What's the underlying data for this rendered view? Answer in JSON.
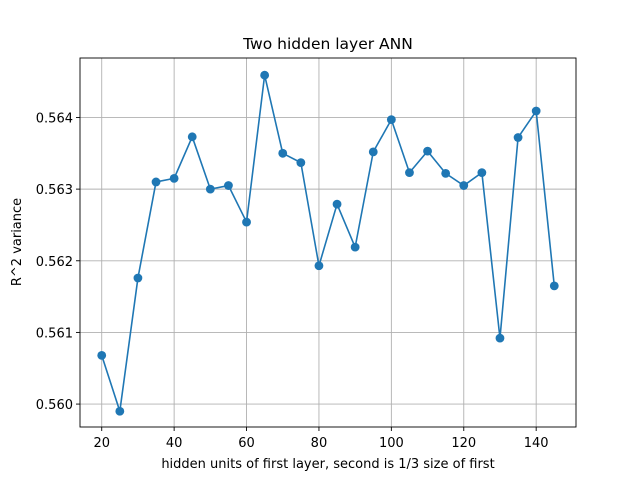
{
  "chart_data": {
    "type": "line",
    "title": "Two hidden layer ANN",
    "xlabel": "hidden units of first layer, second is 1/3 size of first",
    "ylabel": "R^2 variance",
    "xlim": [
      14,
      151
    ],
    "ylim": [
      0.55968,
      0.56483
    ],
    "xticks": [
      20,
      40,
      60,
      80,
      100,
      120,
      140
    ],
    "yticks": [
      0.56,
      0.561,
      0.562,
      0.563,
      0.564
    ],
    "ytick_labels": [
      "0.560",
      "0.561",
      "0.562",
      "0.563",
      "0.564"
    ],
    "grid": true,
    "series": [
      {
        "color": "#1f77b4",
        "marker": "circle",
        "x": [
          20,
          25,
          30,
          35,
          40,
          45,
          50,
          55,
          60,
          65,
          70,
          75,
          80,
          85,
          90,
          95,
          100,
          105,
          110,
          115,
          120,
          125,
          130,
          135,
          140,
          145
        ],
        "y": [
          0.56068,
          0.5599,
          0.56176,
          0.5631,
          0.56315,
          0.56373,
          0.563,
          0.56305,
          0.56254,
          0.56459,
          0.5635,
          0.56337,
          0.56193,
          0.56279,
          0.56219,
          0.56352,
          0.56397,
          0.56323,
          0.56353,
          0.56322,
          0.56305,
          0.56323,
          0.56092,
          0.56372,
          0.56409,
          0.56165
        ]
      }
    ]
  }
}
